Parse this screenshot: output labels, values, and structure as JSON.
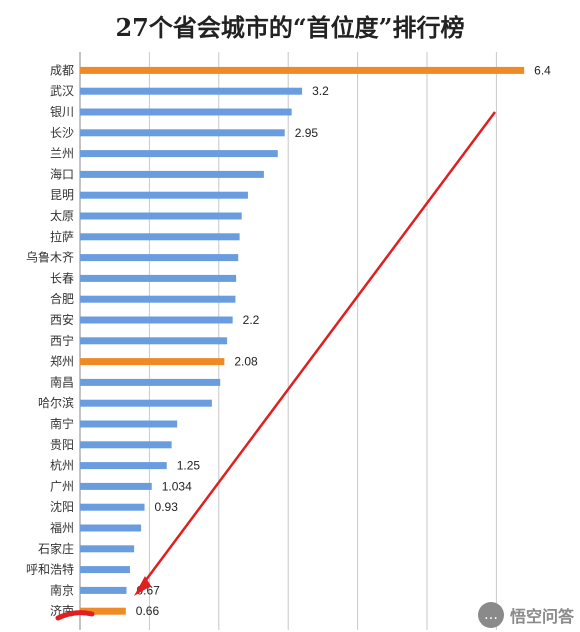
{
  "chart_data": {
    "type": "bar",
    "orientation": "horizontal",
    "title": "27个省会城市的“首位度”排行榜",
    "categories": [
      "成都",
      "武汉",
      "银川",
      "长沙",
      "兰州",
      "海口",
      "昆明",
      "太原",
      "拉萨",
      "乌鲁木齐",
      "长春",
      "合肥",
      "西安",
      "西宁",
      "郑州",
      "南昌",
      "哈尔滨",
      "南宁",
      "贵阳",
      "杭州",
      "广州",
      "沈阳",
      "福州",
      "石家庄",
      "呼和浩特",
      "南京",
      "济南"
    ],
    "values": [
      6.4,
      3.2,
      3.05,
      2.95,
      2.85,
      2.65,
      2.42,
      2.33,
      2.3,
      2.28,
      2.25,
      2.24,
      2.2,
      2.12,
      2.08,
      2.02,
      1.9,
      1.4,
      1.32,
      1.25,
      1.034,
      0.93,
      0.88,
      0.78,
      0.72,
      0.67,
      0.66
    ],
    "value_labels": [
      "6.4",
      "3.2",
      "",
      "2.95",
      "",
      "",
      "",
      "",
      "",
      "",
      "",
      "",
      "2.2",
      "",
      "2.08",
      "",
      "",
      "",
      "",
      "1.25",
      "1.034",
      "0.93",
      "",
      "",
      "",
      "0.67",
      "0.66"
    ],
    "highlight": [
      "成都",
      "郑州",
      "济南"
    ],
    "xlim": [
      0,
      6.6
    ],
    "grid": true,
    "colors": {
      "default": "#6a9de0",
      "highlight": "#f08a24",
      "arrow": "#e02020"
    }
  },
  "watermark": {
    "text": "悟空问答",
    "icon": "chat-bubble-icon"
  }
}
